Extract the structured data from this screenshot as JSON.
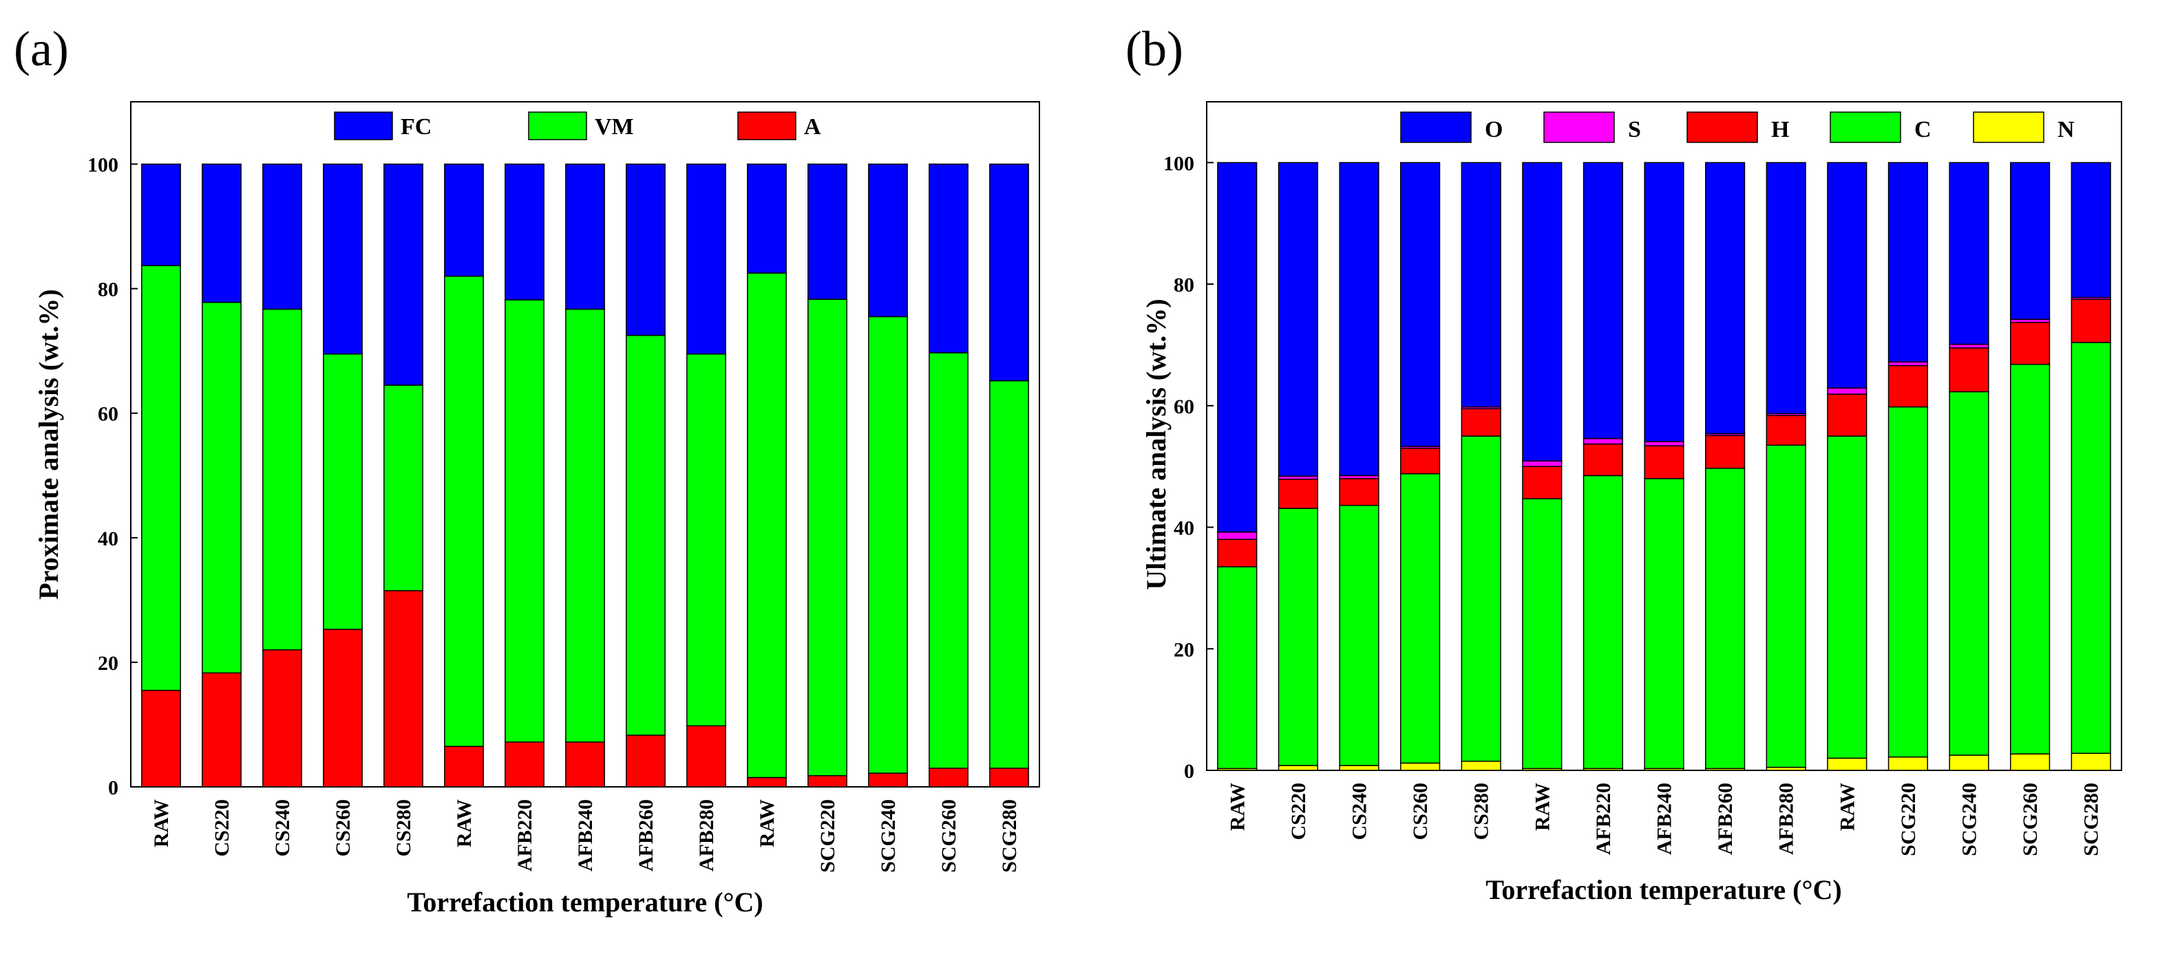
{
  "chart_data": [
    {
      "panel_label": "(a)",
      "type": "bar",
      "stacked": true,
      "categories": [
        "RAW",
        "CS220",
        "CS240",
        "CS260",
        "CS280",
        "RAW",
        "AFB220",
        "AFB240",
        "AFB260",
        "AFB280",
        "RAW",
        "SCG220",
        "SCG240",
        "SCG260",
        "SCG280"
      ],
      "ylabel": "Proximate analysis (wt.%)",
      "xlabel": "Torrefaction temperature (°C)",
      "ylim": [
        0,
        110
      ],
      "yticks": [
        0,
        20,
        40,
        60,
        80,
        100
      ],
      "legend_position": "top",
      "series": [
        {
          "name": "A",
          "color": "#ff0000",
          "values": [
            15.5,
            18.3,
            22,
            25.3,
            31.5,
            6.5,
            7.2,
            7.2,
            8.3,
            9.8,
            1.5,
            1.8,
            2.2,
            3.0,
            3.0
          ]
        },
        {
          "name": "VM",
          "color": "#00ff00",
          "values": [
            68.2,
            59.5,
            54.7,
            44.2,
            33.0,
            75.5,
            71.0,
            69.5,
            64.2,
            59.7,
            81.0,
            76.5,
            73.3,
            66.7,
            62.2
          ]
        },
        {
          "name": "FC",
          "color": "#0000ff",
          "values": [
            16.3,
            22.2,
            23.3,
            30.5,
            35.5,
            18.0,
            21.8,
            23.3,
            27.5,
            30.5,
            17.5,
            21.7,
            24.5,
            30.3,
            34.8
          ]
        }
      ],
      "legend_order": [
        "FC",
        "VM",
        "A"
      ]
    },
    {
      "panel_label": "(b)",
      "type": "bar",
      "stacked": true,
      "categories": [
        "RAW",
        "CS220",
        "CS240",
        "CS260",
        "CS280",
        "RAW",
        "AFB220",
        "AFB240",
        "AFB260",
        "AFB280",
        "RAW",
        "SCG220",
        "SCG240",
        "SCG260",
        "SCG280"
      ],
      "ylabel": "Ultimate analysis (wt.%)",
      "xlabel": "Torrefaction temperature (°C)",
      "ylim": [
        0,
        110
      ],
      "yticks": [
        0,
        20,
        40,
        60,
        80,
        100
      ],
      "legend_position": "top",
      "series": [
        {
          "name": "N",
          "color": "#ffff00",
          "values": [
            0.3,
            0.8,
            0.8,
            1.2,
            1.5,
            0.3,
            0.3,
            0.3,
            0.3,
            0.5,
            2.0,
            2.2,
            2.5,
            2.7,
            2.8
          ]
        },
        {
          "name": "C",
          "color": "#00ff00",
          "values": [
            33.2,
            42.3,
            42.8,
            47.6,
            53.5,
            44.4,
            48.2,
            47.7,
            49.4,
            53.0,
            53.0,
            57.6,
            59.8,
            64.1,
            67.6
          ]
        },
        {
          "name": "H",
          "color": "#ff0000",
          "values": [
            4.5,
            4.8,
            4.4,
            4.2,
            4.5,
            5.3,
            5.2,
            5.4,
            5.4,
            4.9,
            6.9,
            6.8,
            7.2,
            6.9,
            7.1
          ]
        },
        {
          "name": "S",
          "color": "#ff00ff",
          "values": [
            1.2,
            0.5,
            0.5,
            0.3,
            0.3,
            0.9,
            0.9,
            0.7,
            0.3,
            0.3,
            1.0,
            0.6,
            0.6,
            0.5,
            0.3
          ]
        },
        {
          "name": "O",
          "color": "#0000ff",
          "values": [
            60.8,
            51.6,
            51.5,
            46.7,
            40.2,
            49.1,
            45.4,
            45.9,
            44.6,
            41.3,
            37.1,
            32.8,
            29.9,
            25.8,
            22.2
          ]
        }
      ],
      "legend_order": [
        "O",
        "S",
        "H",
        "C",
        "N"
      ]
    }
  ]
}
